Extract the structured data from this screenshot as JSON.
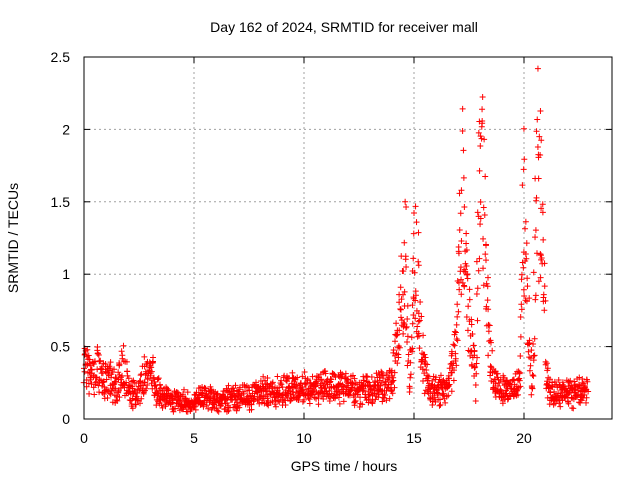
{
  "chart_data": {
    "type": "scatter",
    "title": "Day 162 of 2024, SRMTID for receiver mall",
    "xlabel": "GPS time / hours",
    "ylabel": "SRMTID / TECUs",
    "xlim": [
      0,
      24
    ],
    "ylim": [
      0,
      2.5
    ],
    "xticks": [
      0,
      5,
      10,
      15,
      20
    ],
    "yticks": [
      0,
      0.5,
      1,
      1.5,
      2,
      2.5
    ],
    "xtick_labels": [
      "0",
      "5",
      "10",
      "15",
      "20"
    ],
    "ytick_labels": [
      "0",
      "0.5",
      "1",
      "1.5",
      "2",
      "2.5"
    ],
    "grid": true,
    "marker": "+",
    "series": [
      {
        "name": "SRMTID",
        "color": "#ff0000",
        "profile": {
          "x": [
            0.0,
            0.3,
            0.6,
            0.9,
            1.2,
            1.5,
            1.8,
            2.1,
            2.4,
            2.7,
            3.0,
            3.3,
            3.6,
            4.0,
            4.5,
            5.0,
            5.5,
            6.0,
            6.5,
            7.0,
            7.5,
            8.0,
            8.5,
            9.0,
            9.5,
            10.0,
            10.5,
            11.0,
            11.5,
            12.0,
            12.5,
            13.0,
            13.5,
            14.0,
            14.3,
            14.6,
            14.8,
            15.0,
            15.2,
            15.4,
            15.7,
            16.0,
            16.3,
            16.6,
            16.9,
            17.2,
            17.5,
            17.8,
            18.0,
            18.2,
            18.4,
            18.7,
            19.0,
            19.3,
            19.6,
            19.8,
            20.0,
            20.2,
            20.4,
            20.6,
            20.8,
            21.0,
            21.2,
            21.5,
            22.0,
            22.5,
            22.9
          ],
          "y": [
            0.45,
            0.3,
            0.38,
            0.32,
            0.28,
            0.22,
            0.4,
            0.2,
            0.18,
            0.3,
            0.4,
            0.22,
            0.16,
            0.15,
            0.13,
            0.12,
            0.16,
            0.14,
            0.15,
            0.16,
            0.16,
            0.22,
            0.2,
            0.2,
            0.22,
            0.22,
            0.22,
            0.25,
            0.22,
            0.24,
            0.2,
            0.22,
            0.25,
            0.3,
            0.6,
            1.3,
            0.2,
            1.2,
            1.0,
            0.4,
            0.22,
            0.22,
            0.22,
            0.25,
            0.55,
            1.7,
            0.8,
            0.25,
            2.0,
            1.7,
            0.5,
            0.25,
            0.25,
            0.22,
            0.22,
            0.3,
            1.6,
            0.7,
            0.2,
            1.95,
            1.6,
            0.35,
            0.2,
            0.18,
            0.2,
            0.2,
            0.2
          ]
        }
      }
    ]
  }
}
